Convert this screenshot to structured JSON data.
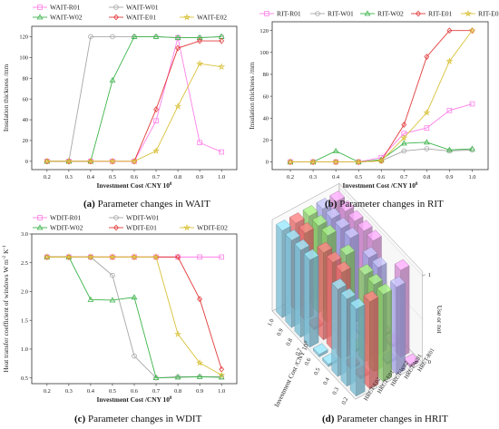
{
  "chart_data": [
    {
      "id": "a",
      "type": "line",
      "caption_letter": "(a)",
      "caption_text": " Parameter changes in WAIT",
      "xlabel": "Investment Cost /CNY 10",
      "xlabel_sup": "8",
      "ylabel": "Insulation thickness /mm",
      "x": [
        0.2,
        0.3,
        0.4,
        0.5,
        0.6,
        0.7,
        0.8,
        0.9,
        1.0
      ],
      "x_ticks": [
        "0.2",
        "0.3",
        "0.4",
        "0.5",
        "0.6",
        "0.7",
        "0.8",
        "0.9",
        "1.0"
      ],
      "xlim": [
        0.13,
        1.07
      ],
      "ylim": [
        -8,
        130
      ],
      "y_ticks": [
        0,
        20,
        40,
        60,
        80,
        100,
        120
      ],
      "series": [
        {
          "name": "WAIT-R01",
          "color": "#ff7fe8",
          "marker": "square",
          "values": [
            0,
            0,
            0,
            0,
            0,
            39,
            119,
            18,
            9
          ]
        },
        {
          "name": "WAIT-W01",
          "color": "#a6a6a6",
          "marker": "circle",
          "values": [
            0,
            0,
            120,
            120,
            120,
            120,
            119,
            119,
            120
          ]
        },
        {
          "name": "WAIT-W02",
          "color": "#3cb44b",
          "marker": "triangle",
          "values": [
            0,
            0,
            0,
            78,
            120,
            120,
            119,
            119,
            120
          ]
        },
        {
          "name": "WAIT-E01",
          "color": "#e23b3b",
          "marker": "diamond",
          "values": [
            0,
            0,
            0,
            0,
            0,
            50,
            109,
            116,
            116
          ]
        },
        {
          "name": "WAIT-E02",
          "color": "#d9c23a",
          "marker": "star",
          "values": [
            0,
            0,
            0,
            0,
            0,
            10,
            53,
            94,
            91
          ]
        }
      ]
    },
    {
      "id": "b",
      "type": "line",
      "caption_letter": "(b)",
      "caption_text": " Parameter changes in RIT",
      "xlabel": "Investment Cost /CNY 10",
      "xlabel_sup": "8",
      "ylabel": "Insulation thickness /mm",
      "x": [
        0.2,
        0.3,
        0.4,
        0.5,
        0.6,
        0.7,
        0.8,
        0.9,
        1.0
      ],
      "x_ticks": [
        "0.2",
        "0.3",
        "0.4",
        "0.5",
        "0.6",
        "0.7",
        "0.8",
        "0.9",
        "1.0"
      ],
      "xlim": [
        0.12,
        1.07
      ],
      "ylim": [
        -7,
        128
      ],
      "y_ticks": [
        0,
        20,
        40,
        60,
        80,
        100,
        120
      ],
      "series": [
        {
          "name": "RIT-R01",
          "color": "#ff7fe8",
          "marker": "square",
          "values": [
            0,
            0,
            0,
            0,
            4,
            26,
            31,
            47,
            53
          ]
        },
        {
          "name": "RIT-W01",
          "color": "#a6a6a6",
          "marker": "circle",
          "values": [
            0,
            0,
            0,
            0,
            1,
            10,
            12,
            10,
            11
          ]
        },
        {
          "name": "RIT-W02",
          "color": "#3cb44b",
          "marker": "triangle",
          "values": [
            0,
            0,
            10,
            0,
            2,
            17,
            18,
            11,
            12
          ]
        },
        {
          "name": "RIT-E01",
          "color": "#e23b3b",
          "marker": "diamond",
          "values": [
            0,
            0,
            0,
            0,
            1,
            34,
            96,
            120,
            120
          ]
        },
        {
          "name": "RIT-E02",
          "color": "#d9c23a",
          "marker": "star",
          "values": [
            0,
            0,
            0,
            0,
            1,
            22,
            45,
            92,
            120
          ]
        }
      ]
    },
    {
      "id": "c",
      "type": "line",
      "caption_letter": "(c)",
      "caption_text": " Parameter changes in WDIT",
      "xlabel": "Investment Cost /CNY 10",
      "xlabel_sup": "8",
      "ylabel": "Heat transfer coefficient of windows W m",
      "ylabel_sup1": "-2",
      "ylabel_mid": " K",
      "ylabel_sup2": "-1",
      "x": [
        0.2,
        0.3,
        0.4,
        0.5,
        0.6,
        0.7,
        0.8,
        0.9,
        1.0
      ],
      "x_ticks": [
        "0.2",
        "0.3",
        "0.4",
        "0.5",
        "0.6",
        "0.7",
        "0.8",
        "0.9",
        "1.0"
      ],
      "xlim": [
        0.13,
        1.07
      ],
      "ylim": [
        0.4,
        3.0
      ],
      "y_ticks": [
        0.5,
        1.0,
        1.5,
        2.0,
        2.5,
        3.0
      ],
      "y_tick_labels": [
        "0.5",
        "1.0",
        "1.5",
        "2.0",
        "2.5",
        "3.0"
      ],
      "series": [
        {
          "name": "WDIT-R01",
          "color": "#ff7fe8",
          "marker": "square",
          "values": [
            2.6,
            2.6,
            2.6,
            2.6,
            2.6,
            2.6,
            2.6,
            2.6,
            2.6
          ]
        },
        {
          "name": "WDIT-W01",
          "color": "#a6a6a6",
          "marker": "circle",
          "values": [
            2.6,
            2.6,
            2.6,
            2.28,
            0.88,
            0.5,
            0.52,
            0.52,
            0.52
          ]
        },
        {
          "name": "WDIT-W02",
          "color": "#3cb44b",
          "marker": "triangle",
          "values": [
            2.6,
            2.6,
            1.86,
            1.85,
            1.9,
            0.5,
            0.51,
            0.52,
            0.51
          ]
        },
        {
          "name": "WDIT-E01",
          "color": "#e23b3b",
          "marker": "diamond",
          "values": [
            2.6,
            2.6,
            2.6,
            2.6,
            2.6,
            2.6,
            2.6,
            1.87,
            0.65
          ]
        },
        {
          "name": "WDIT-E02",
          "color": "#d9c23a",
          "marker": "star",
          "values": [
            2.6,
            2.6,
            2.6,
            2.6,
            2.6,
            2.6,
            1.26,
            0.76,
            0.55
          ]
        }
      ]
    },
    {
      "id": "d",
      "type": "bar3d",
      "caption_letter": "(d)",
      "caption_text": " Parameter changes in HRIT",
      "xlabel": "Investment Cost /CNY 10",
      "xlabel_sup": "8",
      "zlabel": "Use or not",
      "z_ticks": [
        "0",
        "1"
      ],
      "x_ticks": [
        "1.0",
        "0.9",
        "0.8",
        "0.7",
        "0.6",
        "0.5",
        "0.4",
        "0.3",
        "0.2"
      ],
      "rows": [
        "HRCT-E02",
        "HRCT-E01",
        "HRCT-W02",
        "HRCT-W01",
        "HRCT-R01"
      ],
      "row_colors": [
        "#8fd6f0",
        "#ff7a7a",
        "#9be07a",
        "#b8b8ff",
        "#e8a0e8"
      ],
      "values": [
        [
          1,
          1,
          1,
          1,
          0,
          0,
          1,
          1,
          1
        ],
        [
          1,
          1,
          0,
          1,
          1,
          1,
          0,
          0,
          1
        ],
        [
          1,
          1,
          1,
          0,
          1,
          0,
          1,
          1,
          1
        ],
        [
          1,
          1,
          1,
          1,
          0,
          1,
          1,
          0,
          1
        ],
        [
          1,
          1,
          1,
          1,
          1,
          0,
          0,
          1,
          0
        ]
      ]
    }
  ]
}
